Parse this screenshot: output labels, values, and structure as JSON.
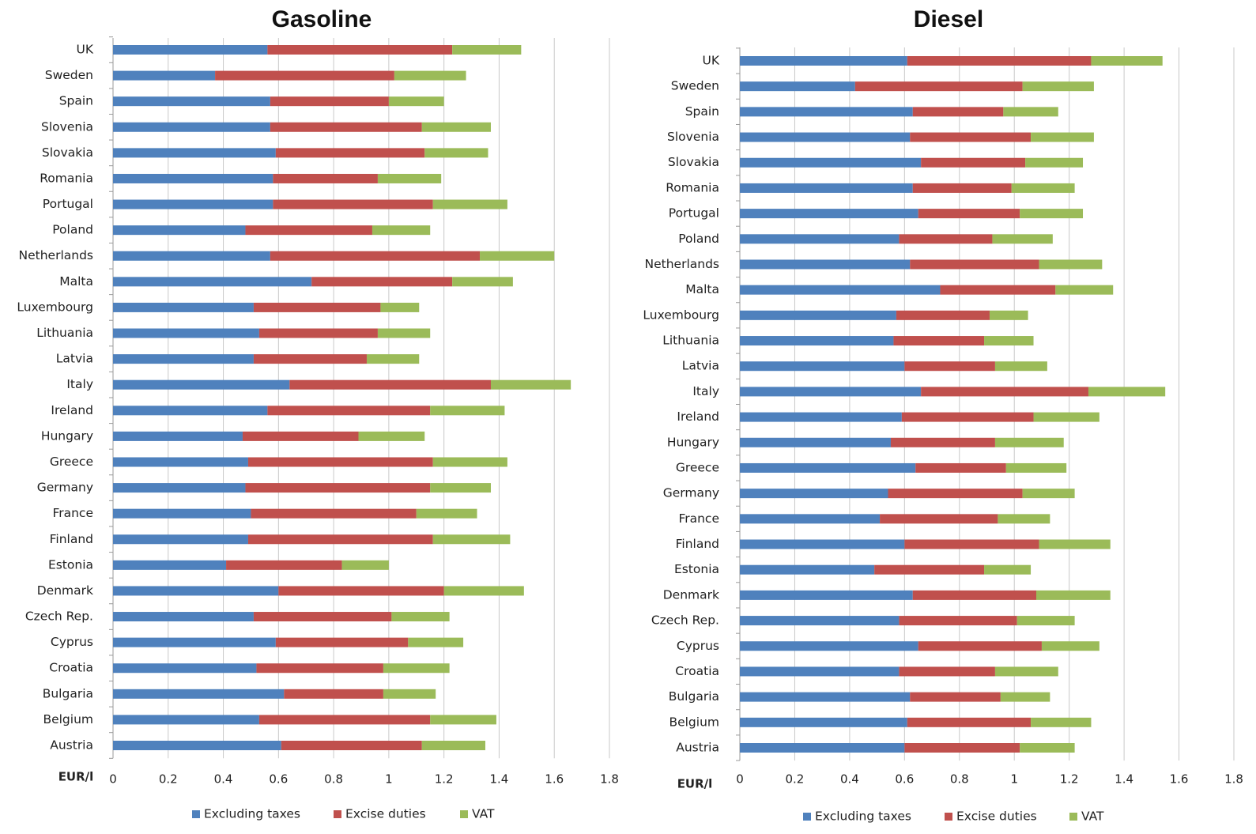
{
  "colors": {
    "excluding_taxes": "#4f81bd",
    "excise_duties": "#c0504d",
    "vat": "#9bbb59"
  },
  "chart_data": [
    {
      "type": "bar",
      "orientation": "horizontal",
      "stacked": true,
      "title": "Gasoline",
      "xlabel": "EUR/l",
      "xlim": [
        0,
        1.8
      ],
      "xticks": [
        "0",
        "0.2",
        "0.4",
        "0.6",
        "0.8",
        "1",
        "1.2",
        "1.4",
        "1.6",
        "1.8"
      ],
      "grid": true,
      "legend": "bottom",
      "categories": [
        "UK",
        "Sweden",
        "Spain",
        "Slovenia",
        "Slovakia",
        "Romania",
        "Portugal",
        "Poland",
        "Netherlands",
        "Malta",
        "Luxembourg",
        "Lithuania",
        "Latvia",
        "Italy",
        "Ireland",
        "Hungary",
        "Greece",
        "Germany",
        "France",
        "Finland",
        "Estonia",
        "Denmark",
        "Czech Rep.",
        "Cyprus",
        "Croatia",
        "Bulgaria",
        "Belgium",
        "Austria"
      ],
      "series": [
        {
          "name": "Excluding taxes",
          "values": [
            0.56,
            0.37,
            0.57,
            0.57,
            0.59,
            0.58,
            0.58,
            0.48,
            0.57,
            0.72,
            0.51,
            0.53,
            0.51,
            0.64,
            0.56,
            0.47,
            0.49,
            0.48,
            0.5,
            0.49,
            0.41,
            0.6,
            0.51,
            0.59,
            0.52,
            0.62,
            0.53,
            0.61
          ]
        },
        {
          "name": "Excise duties",
          "values": [
            0.67,
            0.65,
            0.43,
            0.55,
            0.54,
            0.38,
            0.58,
            0.46,
            0.76,
            0.51,
            0.46,
            0.43,
            0.41,
            0.73,
            0.59,
            0.42,
            0.67,
            0.67,
            0.6,
            0.67,
            0.42,
            0.6,
            0.5,
            0.48,
            0.46,
            0.36,
            0.62,
            0.51
          ]
        },
        {
          "name": "VAT",
          "values": [
            0.25,
            0.26,
            0.2,
            0.25,
            0.23,
            0.23,
            0.27,
            0.21,
            0.27,
            0.22,
            0.14,
            0.19,
            0.19,
            0.29,
            0.27,
            0.24,
            0.27,
            0.22,
            0.22,
            0.28,
            0.17,
            0.29,
            0.21,
            0.2,
            0.24,
            0.19,
            0.24,
            0.23
          ]
        }
      ]
    },
    {
      "type": "bar",
      "orientation": "horizontal",
      "stacked": true,
      "title": "Diesel",
      "xlabel": "EUR/l",
      "xlim": [
        0,
        1.8
      ],
      "xticks": [
        "0",
        "0.2",
        "0.4",
        "0.6",
        "0.8",
        "1",
        "1.2",
        "1.4",
        "1.6",
        "1.8"
      ],
      "grid": true,
      "legend": "bottom",
      "categories": [
        "UK",
        "Sweden",
        "Spain",
        "Slovenia",
        "Slovakia",
        "Romania",
        "Portugal",
        "Poland",
        "Netherlands",
        "Malta",
        "Luxembourg",
        "Lithuania",
        "Latvia",
        "Italy",
        "Ireland",
        "Hungary",
        "Greece",
        "Germany",
        "France",
        "Finland",
        "Estonia",
        "Denmark",
        "Czech Rep.",
        "Cyprus",
        "Croatia",
        "Bulgaria",
        "Belgium",
        "Austria"
      ],
      "series": [
        {
          "name": "Excluding taxes",
          "values": [
            0.61,
            0.42,
            0.63,
            0.62,
            0.66,
            0.63,
            0.65,
            0.58,
            0.62,
            0.73,
            0.57,
            0.56,
            0.6,
            0.66,
            0.59,
            0.55,
            0.64,
            0.54,
            0.51,
            0.6,
            0.49,
            0.63,
            0.58,
            0.65,
            0.58,
            0.62,
            0.61,
            0.6
          ]
        },
        {
          "name": "Excise duties",
          "values": [
            0.67,
            0.61,
            0.33,
            0.44,
            0.38,
            0.36,
            0.37,
            0.34,
            0.47,
            0.42,
            0.34,
            0.33,
            0.33,
            0.61,
            0.48,
            0.38,
            0.33,
            0.49,
            0.43,
            0.49,
            0.4,
            0.45,
            0.43,
            0.45,
            0.35,
            0.33,
            0.45,
            0.42
          ]
        },
        {
          "name": "VAT",
          "values": [
            0.26,
            0.26,
            0.2,
            0.23,
            0.21,
            0.23,
            0.23,
            0.22,
            0.23,
            0.21,
            0.14,
            0.18,
            0.19,
            0.28,
            0.24,
            0.25,
            0.22,
            0.19,
            0.19,
            0.26,
            0.17,
            0.27,
            0.21,
            0.21,
            0.23,
            0.18,
            0.22,
            0.2
          ]
        }
      ]
    }
  ]
}
